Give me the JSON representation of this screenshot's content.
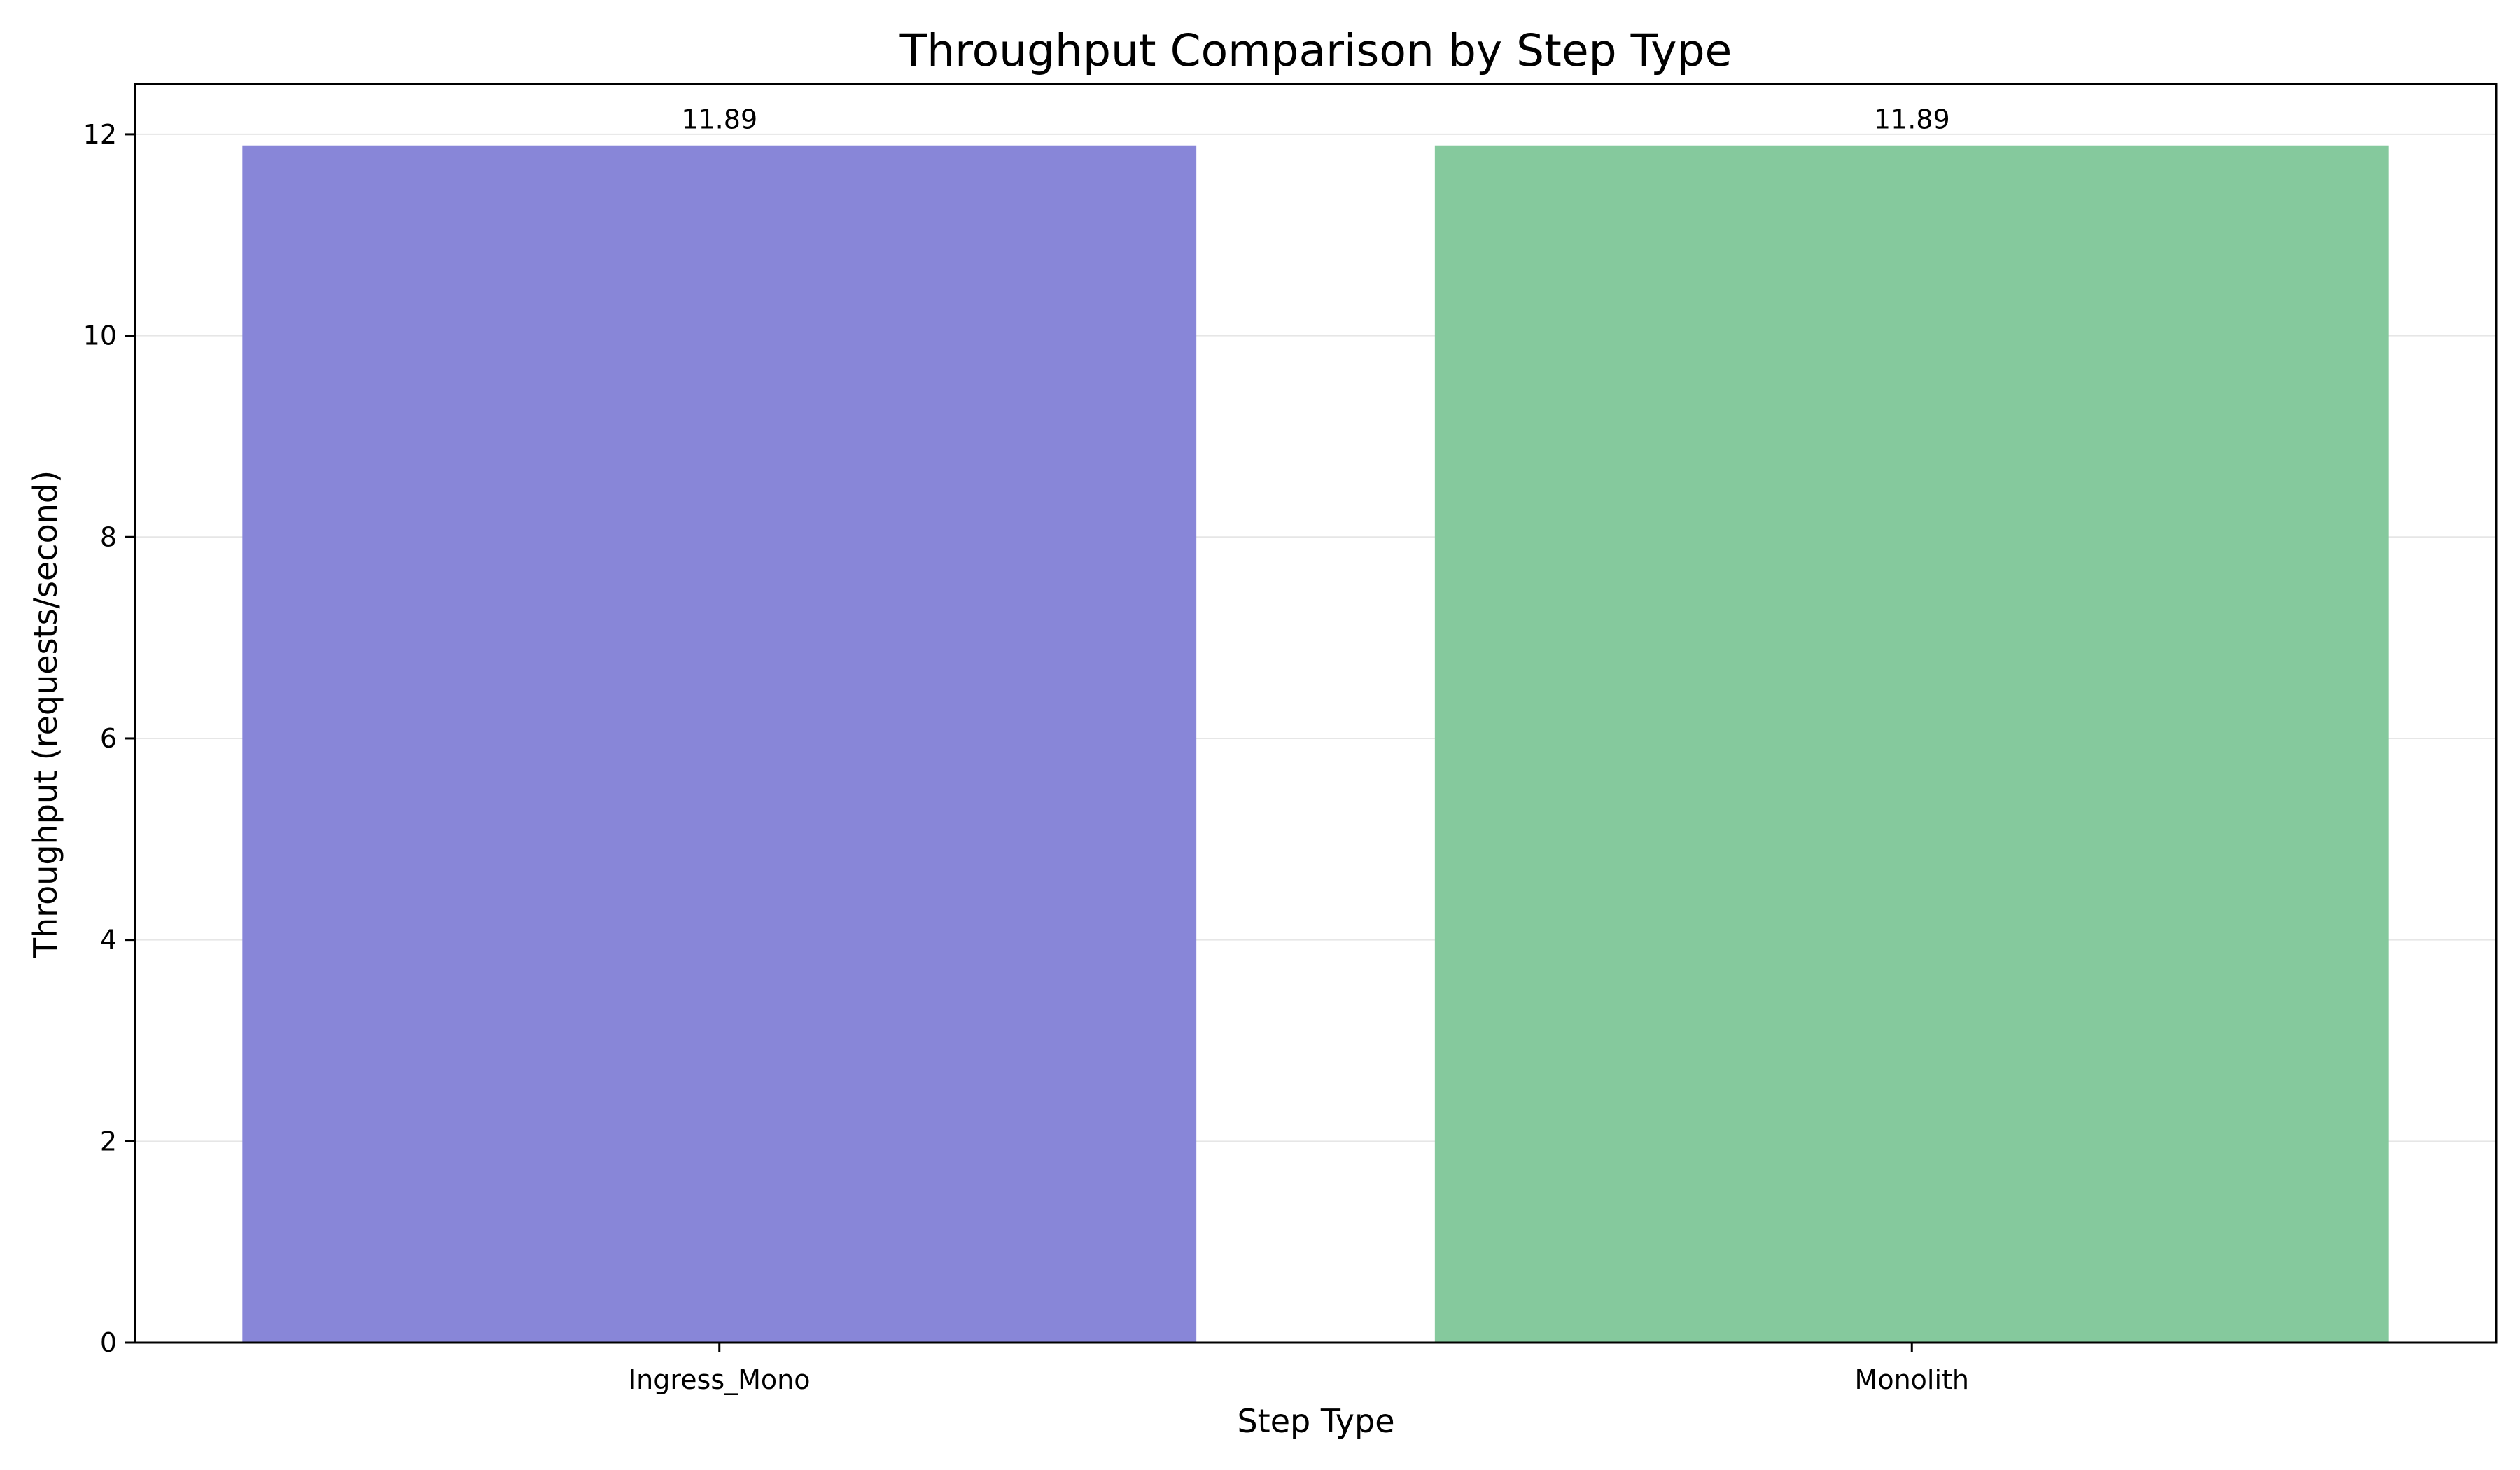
{
  "chart_data": {
    "type": "bar",
    "title": "Throughput Comparison by Step Type",
    "xlabel": "Step Type",
    "ylabel": "Throughput (requests/second)",
    "categories": [
      "Ingress_Mono",
      "Monolith"
    ],
    "values": [
      11.89,
      11.89
    ],
    "data_labels": [
      "11.89",
      "11.89"
    ],
    "colors": [
      "#8886d8",
      "#85c99d"
    ],
    "ylim": [
      0,
      12.5
    ],
    "yticks": [
      0,
      2,
      4,
      6,
      8,
      10,
      12
    ],
    "grid": "y",
    "grid_color": "#e6e6e6"
  }
}
